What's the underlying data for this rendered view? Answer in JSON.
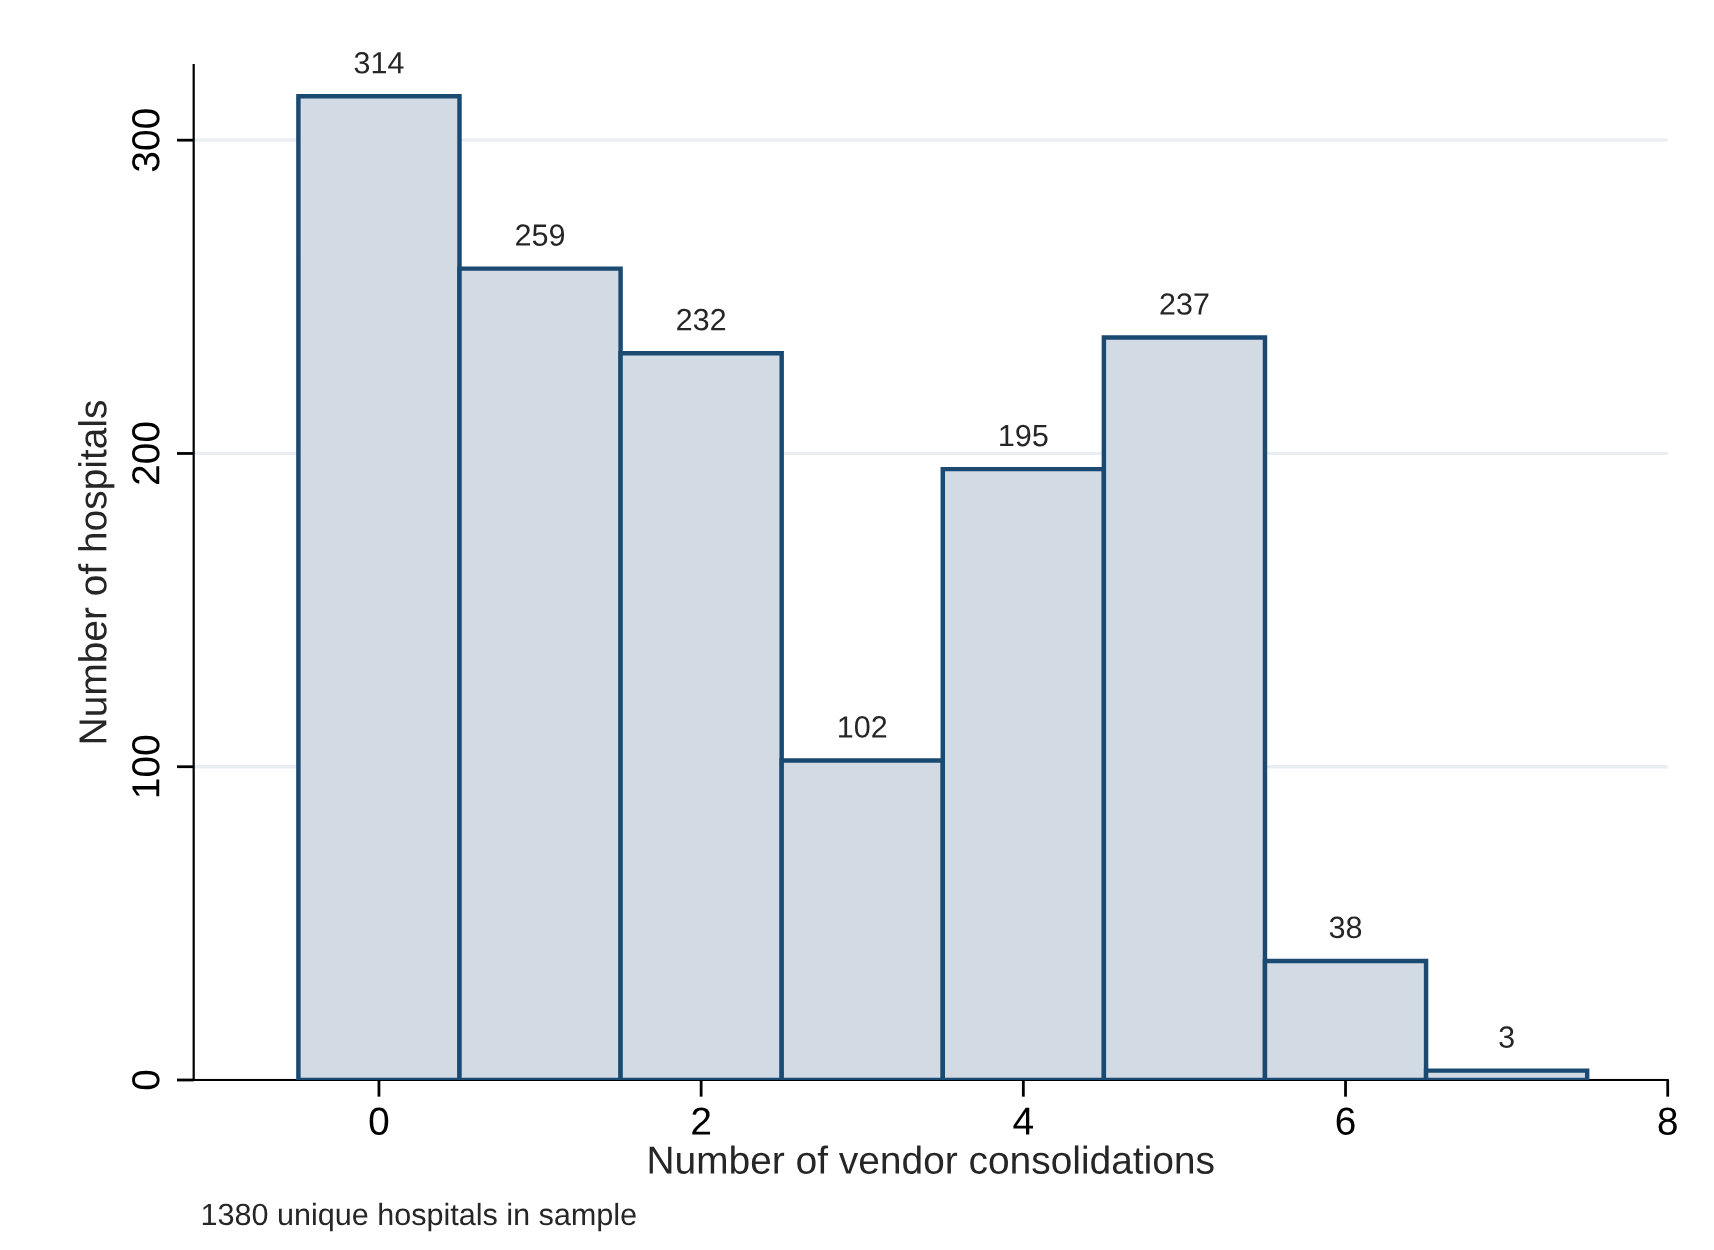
{
  "chart_data": {
    "type": "histogram",
    "xlabel": "Number of vendor consolidations",
    "ylabel": "Number of hospitals",
    "bins": [
      -0.5,
      0.5,
      1.5,
      2.5,
      3.5,
      4.5,
      5.5,
      6.5,
      7.5
    ],
    "values": [
      314,
      259,
      232,
      102,
      195,
      237,
      38,
      3
    ],
    "color": "#d2dae3",
    "xlim": [
      -1.15,
      8
    ],
    "xticks": [
      0,
      2,
      4,
      6,
      8
    ],
    "ylim": [
      0,
      324
    ],
    "yticks": [
      0,
      100,
      200,
      300
    ],
    "grid": "y",
    "data_labels": true,
    "annotations": [
      "1380 unique hospitals in sample"
    ]
  }
}
